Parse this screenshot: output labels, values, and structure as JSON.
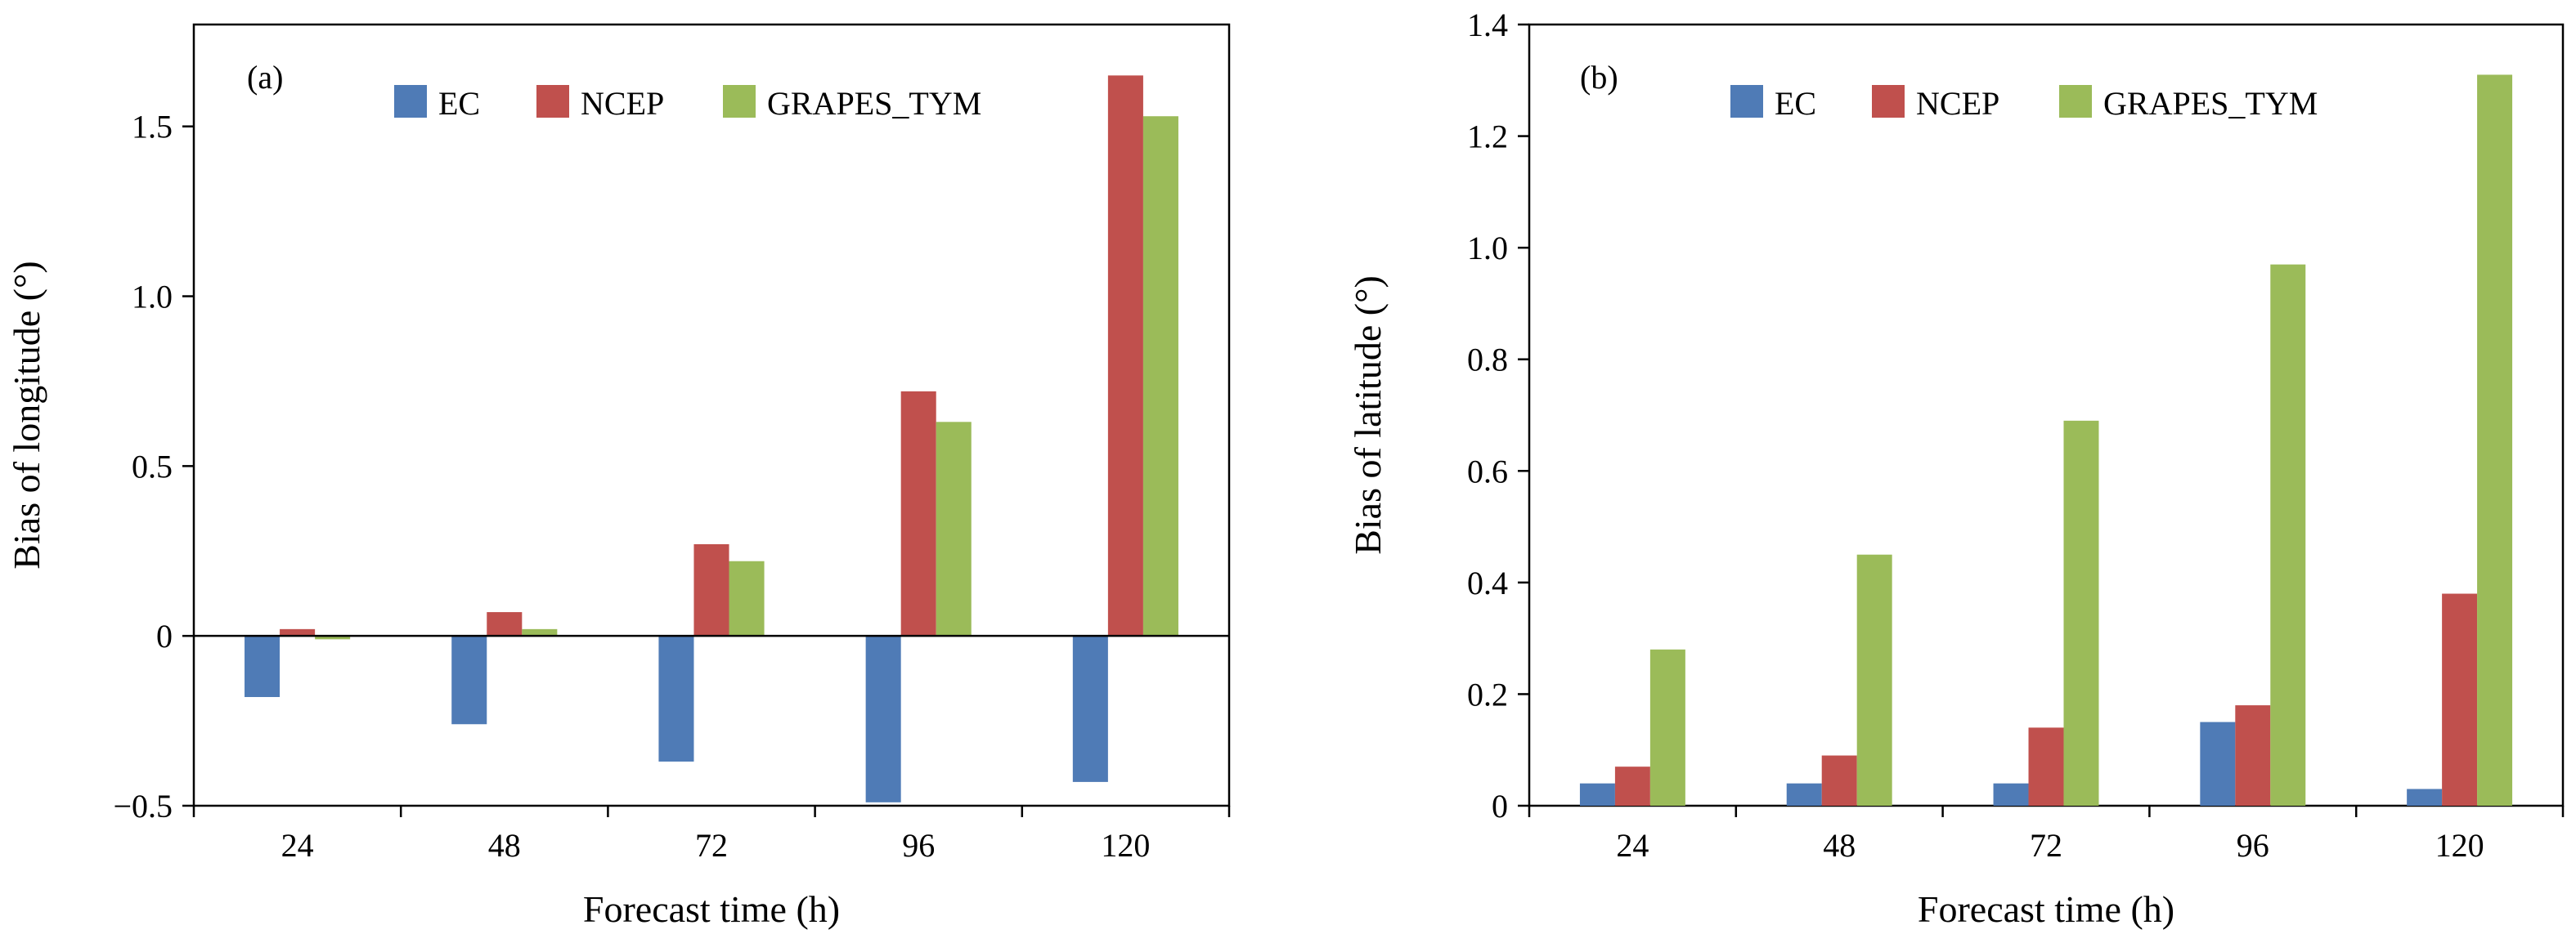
{
  "chart_data": [
    {
      "type": "bar",
      "panel_label": "(a)",
      "categories": [
        "24",
        "48",
        "72",
        "96",
        "120"
      ],
      "series": [
        {
          "name": "EC",
          "color": "#4f7bb6",
          "values": [
            -0.18,
            -0.26,
            -0.37,
            -0.49,
            -0.43
          ]
        },
        {
          "name": "NCEP",
          "color": "#c0504d",
          "values": [
            0.02,
            0.07,
            0.27,
            0.72,
            1.65
          ]
        },
        {
          "name": "GRAPES_TYM",
          "color": "#9bbb59",
          "values": [
            -0.01,
            0.02,
            0.22,
            0.63,
            1.53
          ]
        }
      ],
      "xlabel": "Forecast time (h)",
      "ylabel": "Bias of longitude (°)",
      "ylim": [
        -0.5,
        1.8
      ],
      "yticks": [
        -0.5,
        0,
        0.5,
        1.0,
        1.5
      ],
      "ytick_labels": [
        "−0.5",
        "0",
        "0.5",
        "1.0",
        "1.5"
      ],
      "legend_position": "top"
    },
    {
      "type": "bar",
      "panel_label": "(b)",
      "categories": [
        "24",
        "48",
        "72",
        "96",
        "120"
      ],
      "series": [
        {
          "name": "EC",
          "color": "#4f7bb6",
          "values": [
            0.04,
            0.04,
            0.04,
            0.15,
            0.03
          ]
        },
        {
          "name": "NCEP",
          "color": "#c0504d",
          "values": [
            0.07,
            0.09,
            0.14,
            0.18,
            0.38
          ]
        },
        {
          "name": "GRAPES_TYM",
          "color": "#9bbb59",
          "values": [
            0.28,
            0.45,
            0.69,
            0.97,
            1.31
          ]
        }
      ],
      "xlabel": "Forecast time (h)",
      "ylabel": "Bias of latitude (°)",
      "ylim": [
        0,
        1.4
      ],
      "yticks": [
        0,
        0.2,
        0.4,
        0.6,
        0.8,
        1.0,
        1.2,
        1.4
      ],
      "ytick_labels": [
        "0",
        "0.2",
        "0.4",
        "0.6",
        "0.8",
        "1.0",
        "1.2",
        "1.4"
      ],
      "legend_position": "top"
    }
  ]
}
